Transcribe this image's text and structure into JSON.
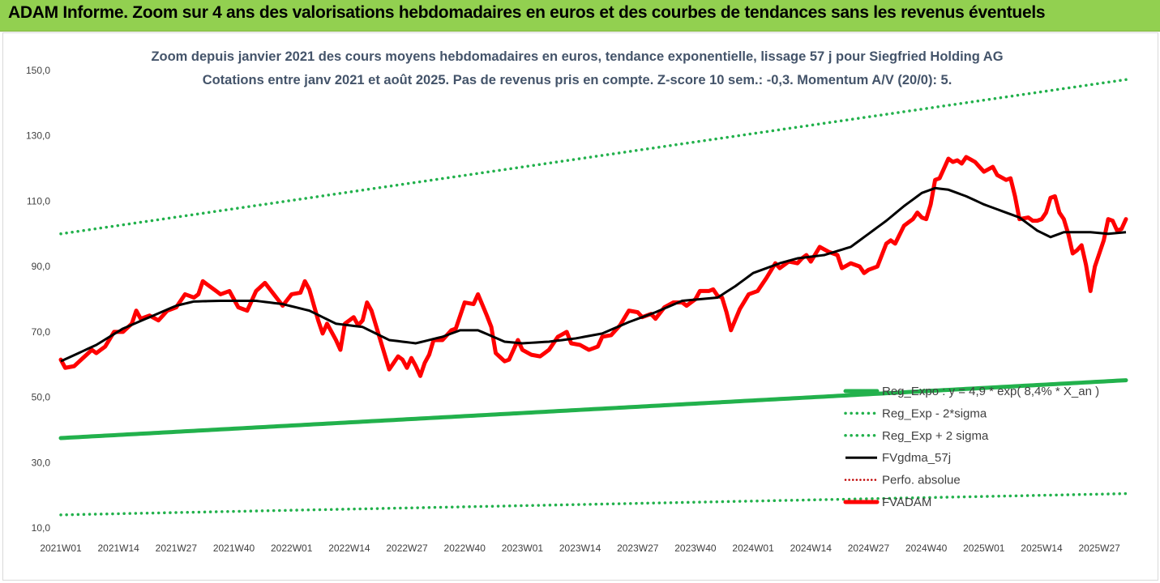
{
  "banner": {
    "title": "ADAM Informe. Zoom sur 4 ans des valorisations hebdomadaires en euros et des courbes de tendances sans les revenus éventuels",
    "background": "#92d050"
  },
  "chart_data": {
    "type": "line",
    "title_line1": "Zoom depuis janvier 2021 des cours moyens hebdomadaires en euros, tendance exponentielle, lissage 57 j pour Siegfried Holding AG",
    "title_line2": "Cotations entre janv 2021 et août 2025.  Pas de revenus pris en compte. Z-score 10 sem.: -0,3. Momentum A/V (20/0): 5.",
    "ylim": [
      10,
      150
    ],
    "ytick_values": [
      10,
      30,
      50,
      70,
      90,
      110,
      130,
      150
    ],
    "ytick_labels": [
      "10,0",
      "30,0",
      "50,0",
      "70,0",
      "90,0",
      "110,0",
      "130,0",
      "150,0"
    ],
    "x_count": 241,
    "xtick_labels": [
      "2021W01",
      "2021W14",
      "2021W27",
      "2021W40",
      "2022W01",
      "2022W14",
      "2022W27",
      "2022W40",
      "2023W01",
      "2023W14",
      "2023W27",
      "2023W40",
      "2024W01",
      "2024W14",
      "2024W27",
      "2024W40",
      "2025W01",
      "2025W14",
      "2025W27"
    ],
    "xtick_index": [
      0,
      13,
      26,
      39,
      52,
      65,
      78,
      91,
      104,
      117,
      130,
      143,
      156,
      169,
      182,
      195,
      208,
      221,
      234
    ],
    "legend_position": "bottom-right",
    "grid": false,
    "series": [
      {
        "name": "Reg_Expo : y = 4,9 *  exp( 8,4% *  X_an )",
        "color": "#22b14c",
        "style": "thick",
        "anchors": [
          [
            0,
            37.5
          ],
          [
            240,
            55.2
          ]
        ]
      },
      {
        "name": "Reg_Exp - 2*sigma",
        "color": "#22b14c",
        "style": "dotted",
        "anchors": [
          [
            0,
            14.0
          ],
          [
            240,
            20.5
          ]
        ]
      },
      {
        "name": "Reg_Exp + 2 sigma",
        "color": "#22b14c",
        "style": "dotted",
        "anchors": [
          [
            0,
            100.0
          ],
          [
            240,
            147.2
          ]
        ]
      },
      {
        "name": "FVgdma_57j",
        "color": "#000000",
        "style": "solid",
        "anchors": [
          [
            0,
            61.0
          ],
          [
            8,
            66.0
          ],
          [
            14,
            71.0
          ],
          [
            20,
            74.5
          ],
          [
            26,
            78.0
          ],
          [
            30,
            79.3
          ],
          [
            36,
            79.5
          ],
          [
            44,
            79.5
          ],
          [
            50,
            78.5
          ],
          [
            56,
            76.5
          ],
          [
            62,
            72.5
          ],
          [
            68,
            71.5
          ],
          [
            74,
            67.5
          ],
          [
            80,
            66.5
          ],
          [
            86,
            68.5
          ],
          [
            90,
            70.5
          ],
          [
            94,
            70.5
          ],
          [
            100,
            67.0
          ],
          [
            104,
            66.5
          ],
          [
            110,
            67.0
          ],
          [
            116,
            68.0
          ],
          [
            122,
            69.5
          ],
          [
            128,
            73.0
          ],
          [
            134,
            76.0
          ],
          [
            140,
            79.5
          ],
          [
            144,
            80.0
          ],
          [
            148,
            80.5
          ],
          [
            152,
            84.0
          ],
          [
            156,
            88.0
          ],
          [
            162,
            91.0
          ],
          [
            166,
            92.5
          ],
          [
            172,
            93.5
          ],
          [
            178,
            96.0
          ],
          [
            182,
            100.0
          ],
          [
            186,
            104.0
          ],
          [
            190,
            108.5
          ],
          [
            194,
            112.5
          ],
          [
            197,
            114.0
          ],
          [
            200,
            113.5
          ],
          [
            204,
            111.5
          ],
          [
            208,
            109.0
          ],
          [
            212,
            107.0
          ],
          [
            216,
            105.0
          ],
          [
            220,
            101.0
          ],
          [
            223,
            99.0
          ],
          [
            226,
            100.5
          ],
          [
            232,
            100.5
          ],
          [
            236,
            100.0
          ],
          [
            240,
            100.5
          ]
        ]
      },
      {
        "name": "Perfo. absolue",
        "color": "#c00000",
        "style": "dotted",
        "anchors": []
      },
      {
        "name": "FVADAM",
        "color": "#ff0000",
        "style": "thick",
        "anchors": [
          [
            0,
            61.5
          ],
          [
            1,
            59.0
          ],
          [
            3,
            59.5
          ],
          [
            5,
            62.0
          ],
          [
            7,
            64.5
          ],
          [
            8,
            63.5
          ],
          [
            10,
            65.5
          ],
          [
            12,
            70.0
          ],
          [
            14,
            70.0
          ],
          [
            16,
            72.5
          ],
          [
            17,
            76.5
          ],
          [
            18,
            74.0
          ],
          [
            20,
            75.0
          ],
          [
            22,
            73.5
          ],
          [
            24,
            76.5
          ],
          [
            26,
            77.5
          ],
          [
            28,
            81.5
          ],
          [
            30,
            80.5
          ],
          [
            31,
            81.5
          ],
          [
            32,
            85.5
          ],
          [
            34,
            83.5
          ],
          [
            36,
            81.5
          ],
          [
            38,
            82.5
          ],
          [
            40,
            77.5
          ],
          [
            42,
            76.5
          ],
          [
            44,
            82.5
          ],
          [
            46,
            85.0
          ],
          [
            48,
            81.5
          ],
          [
            50,
            78.0
          ],
          [
            52,
            81.5
          ],
          [
            54,
            82.0
          ],
          [
            55,
            85.5
          ],
          [
            56,
            83.0
          ],
          [
            58,
            73.5
          ],
          [
            59,
            69.5
          ],
          [
            60,
            72.5
          ],
          [
            62,
            67.5
          ],
          [
            63,
            64.5
          ],
          [
            64,
            72.5
          ],
          [
            66,
            74.5
          ],
          [
            67,
            72.0
          ],
          [
            68,
            73.5
          ],
          [
            69,
            79.0
          ],
          [
            70,
            76.5
          ],
          [
            72,
            67.5
          ],
          [
            73,
            63.0
          ],
          [
            74,
            58.5
          ],
          [
            76,
            62.5
          ],
          [
            77,
            61.5
          ],
          [
            78,
            59.0
          ],
          [
            79,
            62.0
          ],
          [
            80,
            59.5
          ],
          [
            81,
            56.5
          ],
          [
            82,
            60.5
          ],
          [
            83,
            63.0
          ],
          [
            84,
            67.5
          ],
          [
            86,
            67.5
          ],
          [
            88,
            70.5
          ],
          [
            89,
            71.0
          ],
          [
            91,
            79.0
          ],
          [
            93,
            78.5
          ],
          [
            94,
            81.5
          ],
          [
            96,
            75.0
          ],
          [
            97,
            71.5
          ],
          [
            98,
            63.5
          ],
          [
            100,
            61.0
          ],
          [
            101,
            61.5
          ],
          [
            102,
            64.5
          ],
          [
            103,
            67.5
          ],
          [
            104,
            64.5
          ],
          [
            106,
            63.0
          ],
          [
            108,
            62.5
          ],
          [
            110,
            64.5
          ],
          [
            112,
            68.5
          ],
          [
            114,
            70.0
          ],
          [
            115,
            66.5
          ],
          [
            117,
            66.0
          ],
          [
            119,
            64.5
          ],
          [
            121,
            65.5
          ],
          [
            122,
            68.5
          ],
          [
            124,
            69.0
          ],
          [
            126,
            72.0
          ],
          [
            128,
            76.5
          ],
          [
            130,
            76.0
          ],
          [
            131,
            74.5
          ],
          [
            133,
            75.5
          ],
          [
            134,
            74.0
          ],
          [
            136,
            77.5
          ],
          [
            138,
            79.0
          ],
          [
            140,
            79.0
          ],
          [
            141,
            78.0
          ],
          [
            143,
            80.0
          ],
          [
            144,
            82.5
          ],
          [
            146,
            82.5
          ],
          [
            147,
            83.0
          ],
          [
            148,
            81.0
          ],
          [
            149,
            80.5
          ],
          [
            150,
            76.0
          ],
          [
            151,
            70.5
          ],
          [
            153,
            77.0
          ],
          [
            155,
            81.5
          ],
          [
            157,
            82.5
          ],
          [
            159,
            86.5
          ],
          [
            161,
            91.0
          ],
          [
            162,
            89.5
          ],
          [
            164,
            91.5
          ],
          [
            166,
            91.0
          ],
          [
            167,
            92.5
          ],
          [
            168,
            93.5
          ],
          [
            169,
            91.5
          ],
          [
            171,
            96.0
          ],
          [
            173,
            94.5
          ],
          [
            175,
            93.5
          ],
          [
            176,
            89.5
          ],
          [
            178,
            91.0
          ],
          [
            180,
            90.0
          ],
          [
            181,
            88.0
          ],
          [
            182,
            89.0
          ],
          [
            184,
            90.0
          ],
          [
            186,
            97.0
          ],
          [
            187,
            98.0
          ],
          [
            188,
            97.0
          ],
          [
            190,
            102.5
          ],
          [
            192,
            104.5
          ],
          [
            193,
            106.5
          ],
          [
            194,
            105.0
          ],
          [
            195,
            104.5
          ],
          [
            196,
            109.0
          ],
          [
            197,
            116.5
          ],
          [
            198,
            117.0
          ],
          [
            200,
            123.0
          ],
          [
            201,
            122.0
          ],
          [
            202,
            122.5
          ],
          [
            203,
            121.5
          ],
          [
            204,
            123.5
          ],
          [
            206,
            122.0
          ],
          [
            208,
            119.0
          ],
          [
            210,
            120.5
          ],
          [
            211,
            118.0
          ],
          [
            213,
            116.5
          ],
          [
            214,
            117.0
          ],
          [
            215,
            111.5
          ],
          [
            216,
            104.5
          ],
          [
            218,
            105.0
          ],
          [
            219,
            104.0
          ],
          [
            220,
            104.0
          ],
          [
            221,
            104.5
          ],
          [
            222,
            106.5
          ],
          [
            223,
            111.0
          ],
          [
            224,
            111.5
          ],
          [
            225,
            106.5
          ],
          [
            226,
            104.5
          ],
          [
            227,
            100.0
          ],
          [
            228,
            94.0
          ],
          [
            229,
            95.0
          ],
          [
            230,
            96.5
          ],
          [
            231,
            90.5
          ],
          [
            232,
            82.5
          ],
          [
            233,
            90.0
          ],
          [
            235,
            98.0
          ],
          [
            236,
            104.5
          ],
          [
            237,
            104.0
          ],
          [
            238,
            101.0
          ],
          [
            239,
            101.5
          ],
          [
            240,
            104.5
          ]
        ]
      }
    ]
  }
}
